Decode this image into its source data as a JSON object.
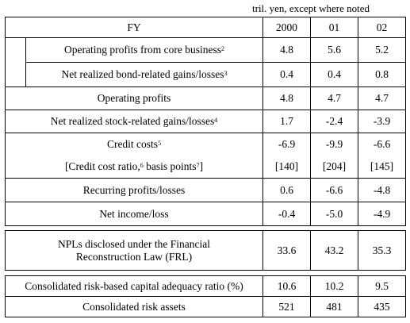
{
  "unit_note": "tril. yen, except where noted",
  "header": {
    "label": "FY",
    "years": [
      "2000",
      "01",
      "02"
    ]
  },
  "table1": {
    "core_profits": {
      "label": "Operating profits from core business",
      "note": "2",
      "values": [
        "4.8",
        "5.6",
        "5.2"
      ]
    },
    "bond_gains": {
      "label": "Net realized bond-related gains/losses",
      "note": "3",
      "values": [
        "0.4",
        "0.4",
        "0.8"
      ]
    },
    "operating_profits": {
      "label": "Operating profits",
      "values": [
        "4.8",
        "4.7",
        "4.7"
      ]
    },
    "stock_gains": {
      "label": "Net realized stock-related gains/losses",
      "note": "4",
      "values": [
        "1.7",
        "-2.4",
        "-3.9"
      ]
    },
    "credit_costs": {
      "label": "Credit costs",
      "note": "5",
      "values": [
        "-6.9",
        "-9.9",
        "-6.6"
      ]
    },
    "credit_cost_ratio": {
      "label_a": "[Credit cost ratio,",
      "note_a": "6",
      "label_b": " basis points",
      "note_b": "7",
      "label_c": "]",
      "values": [
        "[140]",
        "[204]",
        "[145]"
      ]
    },
    "recurring": {
      "label": "Recurring profits/losses",
      "values": [
        "0.6",
        "-6.6",
        "-4.8"
      ]
    },
    "net_income": {
      "label": "Net income/loss",
      "values": [
        "-0.4",
        "-5.0",
        "-4.9"
      ]
    }
  },
  "table2": {
    "npl": {
      "label_line1": "NPLs disclosed under the Financial",
      "label_line2": "Reconstruction Law (FRL)",
      "values": [
        "33.6",
        "43.2",
        "35.3"
      ]
    }
  },
  "table3": {
    "capital_ratio": {
      "label": "Consolidated risk-based capital adequacy ratio (%)",
      "values": [
        "10.6",
        "10.2",
        "9.5"
      ]
    },
    "risk_assets": {
      "label": "Consolidated risk assets",
      "values": [
        "521",
        "481",
        "435"
      ]
    }
  }
}
